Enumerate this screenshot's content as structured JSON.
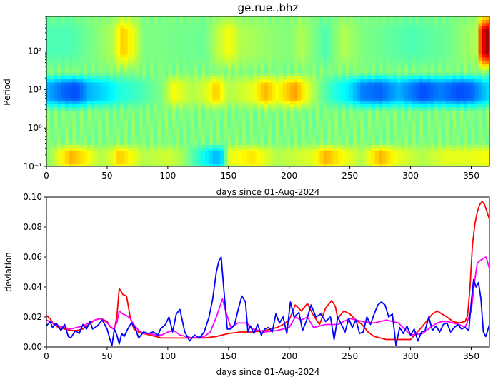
{
  "chart_data": [
    {
      "type": "heatmap",
      "title": "ge.rue..bhz",
      "xlabel": "days since 01-Aug-2024",
      "ylabel": "Period",
      "xlim": [
        0,
        365
      ],
      "ylim": [
        0.1,
        800
      ],
      "yscale": "log",
      "x_ticks": [
        0,
        50,
        100,
        150,
        200,
        250,
        300,
        350
      ],
      "y_ticks": [
        {
          "value": 0.1,
          "label": "10⁻¹"
        },
        {
          "value": 1,
          "label": "10⁰"
        },
        {
          "value": 10,
          "label": "10¹"
        },
        {
          "value": 100,
          "label": "10²"
        }
      ],
      "colormap": "jet",
      "background_level": 0.5,
      "bands": [
        {
          "name": "short-period",
          "period_range": [
            0.1,
            0.3
          ],
          "day_levels": [
            [
              0,
              0.5
            ],
            [
              10,
              0.6
            ],
            [
              20,
              0.7
            ],
            [
              30,
              0.65
            ],
            [
              45,
              0.55
            ],
            [
              55,
              0.6
            ],
            [
              60,
              0.68
            ],
            [
              70,
              0.62
            ],
            [
              80,
              0.55
            ],
            [
              100,
              0.58
            ],
            [
              110,
              0.55
            ],
            [
              140,
              0.3
            ],
            [
              145,
              0.35
            ],
            [
              150,
              0.6
            ],
            [
              170,
              0.65
            ],
            [
              190,
              0.55
            ],
            [
              210,
              0.58
            ],
            [
              220,
              0.6
            ],
            [
              230,
              0.7
            ],
            [
              245,
              0.62
            ],
            [
              260,
              0.55
            ],
            [
              275,
              0.7
            ],
            [
              290,
              0.6
            ],
            [
              310,
              0.55
            ],
            [
              330,
              0.6
            ],
            [
              350,
              0.6
            ],
            [
              365,
              0.62
            ]
          ]
        },
        {
          "name": "microseism",
          "period_range": [
            4,
            20
          ],
          "day_levels": [
            [
              0,
              0.3
            ],
            [
              15,
              0.22
            ],
            [
              25,
              0.2
            ],
            [
              35,
              0.3
            ],
            [
              50,
              0.35
            ],
            [
              60,
              0.4
            ],
            [
              80,
              0.45
            ],
            [
              95,
              0.5
            ],
            [
              105,
              0.62
            ],
            [
              120,
              0.55
            ],
            [
              130,
              0.58
            ],
            [
              140,
              0.68
            ],
            [
              150,
              0.55
            ],
            [
              170,
              0.6
            ],
            [
              180,
              0.7
            ],
            [
              190,
              0.62
            ],
            [
              205,
              0.72
            ],
            [
              215,
              0.6
            ],
            [
              230,
              0.45
            ],
            [
              250,
              0.35
            ],
            [
              260,
              0.25
            ],
            [
              275,
              0.22
            ],
            [
              290,
              0.3
            ],
            [
              310,
              0.2
            ],
            [
              325,
              0.25
            ],
            [
              340,
              0.2
            ],
            [
              350,
              0.22
            ],
            [
              365,
              0.35
            ]
          ]
        },
        {
          "name": "long-period",
          "period_range": [
            40,
            800
          ],
          "day_levels": [
            [
              0,
              0.45
            ],
            [
              20,
              0.45
            ],
            [
              40,
              0.5
            ],
            [
              55,
              0.55
            ],
            [
              63,
              0.68
            ],
            [
              70,
              0.62
            ],
            [
              80,
              0.5
            ],
            [
              130,
              0.48
            ],
            [
              150,
              0.62
            ],
            [
              160,
              0.55
            ],
            [
              200,
              0.5
            ],
            [
              210,
              0.55
            ],
            [
              230,
              0.45
            ],
            [
              245,
              0.55
            ],
            [
              260,
              0.5
            ],
            [
              300,
              0.45
            ],
            [
              330,
              0.48
            ],
            [
              355,
              0.55
            ],
            [
              358,
              0.85
            ],
            [
              362,
              0.95
            ],
            [
              365,
              0.97
            ]
          ]
        }
      ]
    },
    {
      "type": "line",
      "xlabel": "days since 01-Aug-2024",
      "ylabel": "deviation",
      "xlim": [
        0,
        365
      ],
      "ylim": [
        0.0,
        0.1
      ],
      "x_ticks": [
        0,
        50,
        100,
        150,
        200,
        250,
        300,
        350
      ],
      "y_ticks": [
        0.0,
        0.02,
        0.04,
        0.06,
        0.08,
        0.1
      ],
      "y_tick_labels": [
        "0.00",
        "0.02",
        "0.04",
        "0.06",
        "0.08",
        "0.10"
      ],
      "series": [
        {
          "color": "#ff0000",
          "x": [
            0,
            3,
            6,
            10,
            15,
            20,
            25,
            30,
            35,
            40,
            45,
            50,
            53,
            56,
            58,
            60,
            63,
            66,
            69,
            72,
            76,
            80,
            85,
            90,
            95,
            100,
            110,
            120,
            130,
            140,
            150,
            160,
            170,
            180,
            190,
            195,
            200,
            205,
            210,
            215,
            220,
            225,
            230,
            235,
            238,
            240,
            245,
            250,
            255,
            260,
            265,
            270,
            275,
            280,
            285,
            290,
            300,
            310,
            318,
            322,
            326,
            330,
            335,
            340,
            345,
            347,
            349,
            351,
            353,
            355,
            357,
            359,
            361,
            363,
            365
          ],
          "values": [
            0.021,
            0.019,
            0.015,
            0.013,
            0.012,
            0.011,
            0.011,
            0.012,
            0.015,
            0.018,
            0.019,
            0.017,
            0.013,
            0.012,
            0.02,
            0.039,
            0.035,
            0.034,
            0.02,
            0.012,
            0.01,
            0.009,
            0.008,
            0.007,
            0.006,
            0.006,
            0.006,
            0.006,
            0.006,
            0.007,
            0.009,
            0.01,
            0.01,
            0.011,
            0.013,
            0.015,
            0.018,
            0.028,
            0.024,
            0.029,
            0.021,
            0.015,
            0.026,
            0.031,
            0.027,
            0.019,
            0.024,
            0.022,
            0.018,
            0.015,
            0.01,
            0.007,
            0.006,
            0.005,
            0.005,
            0.005,
            0.005,
            0.014,
            0.022,
            0.024,
            0.022,
            0.02,
            0.017,
            0.016,
            0.017,
            0.021,
            0.04,
            0.068,
            0.082,
            0.09,
            0.095,
            0.097,
            0.095,
            0.09,
            0.085
          ]
        },
        {
          "color": "#ff00ff",
          "x": [
            0,
            5,
            10,
            15,
            20,
            25,
            30,
            35,
            40,
            45,
            50,
            55,
            58,
            60,
            63,
            66,
            69,
            72,
            76,
            80,
            85,
            90,
            95,
            100,
            105,
            110,
            120,
            130,
            135,
            140,
            145,
            148,
            152,
            158,
            165,
            170,
            180,
            190,
            200,
            205,
            210,
            215,
            220,
            230,
            240,
            250,
            260,
            270,
            280,
            290,
            300,
            310,
            318,
            322,
            326,
            330,
            335,
            340,
            345,
            350,
            353,
            355,
            358,
            360,
            362,
            363,
            365
          ],
          "values": [
            0.018,
            0.016,
            0.014,
            0.013,
            0.012,
            0.013,
            0.014,
            0.016,
            0.018,
            0.019,
            0.016,
            0.012,
            0.016,
            0.024,
            0.022,
            0.021,
            0.019,
            0.015,
            0.011,
            0.009,
            0.009,
            0.008,
            0.008,
            0.01,
            0.011,
            0.008,
            0.006,
            0.007,
            0.01,
            0.02,
            0.032,
            0.023,
            0.013,
            0.016,
            0.016,
            0.012,
            0.01,
            0.011,
            0.013,
            0.02,
            0.018,
            0.02,
            0.013,
            0.015,
            0.015,
            0.019,
            0.017,
            0.016,
            0.018,
            0.016,
            0.008,
            0.009,
            0.014,
            0.016,
            0.017,
            0.017,
            0.016,
            0.015,
            0.013,
            0.024,
            0.045,
            0.056,
            0.058,
            0.059,
            0.06,
            0.058,
            0.052
          ]
        },
        {
          "color": "#0000ff",
          "x": [
            0,
            3,
            5,
            8,
            12,
            15,
            18,
            20,
            24,
            27,
            30,
            33,
            36,
            38,
            42,
            46,
            50,
            52,
            54,
            56,
            58,
            60,
            62,
            64,
            67,
            70,
            73,
            76,
            80,
            84,
            88,
            92,
            94,
            98,
            101,
            104,
            107,
            110,
            114,
            118,
            122,
            126,
            130,
            134,
            137,
            140,
            142,
            144,
            146,
            149,
            152,
            155,
            158,
            161,
            164,
            166,
            168,
            171,
            174,
            177,
            180,
            183,
            186,
            189,
            192,
            195,
            198,
            201,
            204,
            208,
            211,
            214,
            218,
            222,
            226,
            230,
            234,
            237,
            240,
            243,
            246,
            249,
            252,
            255,
            258,
            261,
            264,
            267,
            270,
            273,
            276,
            279,
            282,
            285,
            288,
            291,
            294,
            297,
            300,
            303,
            306,
            309,
            312,
            315,
            318,
            321,
            324,
            327,
            330,
            333,
            336,
            339,
            342,
            345,
            348,
            350,
            352,
            354,
            356,
            358,
            360,
            362,
            365
          ],
          "values": [
            0.014,
            0.017,
            0.013,
            0.016,
            0.011,
            0.015,
            0.007,
            0.006,
            0.011,
            0.009,
            0.015,
            0.012,
            0.017,
            0.012,
            0.014,
            0.018,
            0.012,
            0.006,
            0.001,
            0.012,
            0.008,
            0.002,
            0.009,
            0.007,
            0.012,
            0.016,
            0.013,
            0.006,
            0.01,
            0.009,
            0.01,
            0.008,
            0.012,
            0.015,
            0.02,
            0.01,
            0.022,
            0.025,
            0.01,
            0.004,
            0.008,
            0.006,
            0.01,
            0.02,
            0.032,
            0.05,
            0.057,
            0.06,
            0.04,
            0.012,
            0.012,
            0.015,
            0.025,
            0.034,
            0.03,
            0.01,
            0.014,
            0.009,
            0.015,
            0.008,
            0.012,
            0.013,
            0.01,
            0.022,
            0.016,
            0.02,
            0.009,
            0.03,
            0.02,
            0.023,
            0.011,
            0.017,
            0.028,
            0.02,
            0.022,
            0.017,
            0.02,
            0.005,
            0.02,
            0.015,
            0.01,
            0.019,
            0.013,
            0.018,
            0.009,
            0.01,
            0.02,
            0.015,
            0.022,
            0.028,
            0.03,
            0.028,
            0.02,
            0.022,
            0.001,
            0.013,
            0.009,
            0.014,
            0.008,
            0.012,
            0.004,
            0.01,
            0.011,
            0.02,
            0.011,
            0.014,
            0.01,
            0.015,
            0.016,
            0.01,
            0.013,
            0.015,
            0.012,
            0.013,
            0.011,
            0.03,
            0.045,
            0.04,
            0.043,
            0.032,
            0.01,
            0.007,
            0.015
          ]
        }
      ]
    }
  ]
}
